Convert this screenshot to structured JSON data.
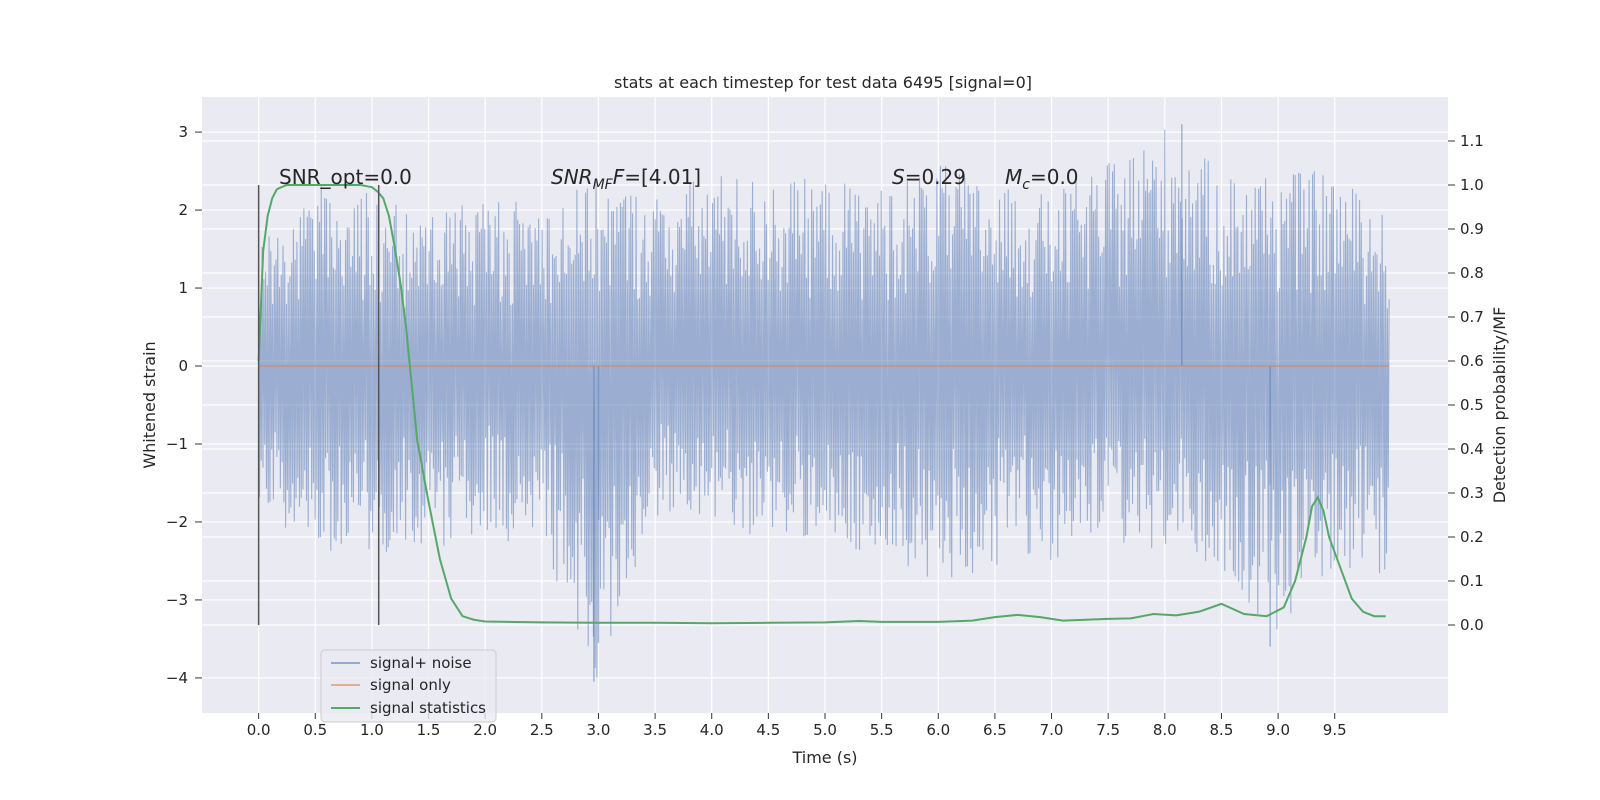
{
  "chart_data": {
    "type": "line",
    "title": "stats at each timestep for test data 6495 [signal=0]",
    "xlabel": "Time (s)",
    "ylabel": "Whitened strain",
    "ylabel_right": "Detection probability/MF",
    "xlim": [
      -0.5,
      10.5
    ],
    "ylim": [
      -4.45,
      3.45
    ],
    "ylim_right": [
      -0.2,
      1.2
    ],
    "x_ticks": [
      0.0,
      0.5,
      1.0,
      1.5,
      2.0,
      2.5,
      3.0,
      3.5,
      4.0,
      4.5,
      5.0,
      5.5,
      6.0,
      6.5,
      7.0,
      7.5,
      8.0,
      8.5,
      9.0,
      9.5
    ],
    "x_tick_labels": [
      "0.0",
      "0.5",
      "1.0",
      "1.5",
      "2.0",
      "2.5",
      "3.0",
      "3.5",
      "4.0",
      "4.5",
      "5.0",
      "5.5",
      "6.0",
      "6.5",
      "7.0",
      "7.5",
      "8.0",
      "8.5",
      "9.0",
      "9.5"
    ],
    "y_ticks": [
      3,
      2,
      1,
      0,
      -1,
      -2,
      -3,
      -4
    ],
    "y_tick_labels": [
      "3",
      "2",
      "1",
      "0",
      "−1",
      "−2",
      "−3",
      "−4"
    ],
    "y_ticks_right": [
      1.1,
      1.0,
      0.9,
      0.8,
      0.7,
      0.6,
      0.5,
      0.4,
      0.3,
      0.2,
      0.1,
      0.0
    ],
    "y_tick_labels_right": [
      "1.1",
      "1.0",
      "0.9",
      "0.8",
      "0.7",
      "0.6",
      "0.5",
      "0.4",
      "0.3",
      "0.2",
      "0.1",
      "0.0"
    ],
    "grid": true,
    "legend": {
      "placement": "lower-left",
      "entries": [
        "signal+ noise",
        "signal only",
        "signal statistics"
      ]
    },
    "annotations": {
      "snr_opt": "SNR_opt=0.0",
      "snr_mf_var": "SNR",
      "snr_mf_sub": "MF",
      "snr_mf_rest": "=[4.01]",
      "s_var": "S",
      "s_rest": "=0.29",
      "mc_var": "M",
      "mc_sub": "c",
      "mc_rest": "=0.0"
    },
    "markers_x": [
      0.0,
      1.06
    ],
    "markers_yrange_right": [
      0.0,
      1.0
    ],
    "series": [
      {
        "name": "signal+ noise",
        "color": "#4c72b0",
        "x_range": [
          0.0,
          9.98
        ],
        "envelope": {
          "x": [
            0.0,
            0.5,
            1.0,
            1.5,
            2.0,
            2.5,
            3.0,
            3.5,
            4.0,
            4.5,
            5.0,
            5.5,
            6.0,
            6.5,
            7.0,
            7.5,
            8.0,
            8.5,
            9.0,
            9.5,
            9.98
          ],
          "upper": [
            1.5,
            2.4,
            2.3,
            2.0,
            2.2,
            2.1,
            2.4,
            2.2,
            2.5,
            2.4,
            2.4,
            2.3,
            2.6,
            2.3,
            2.2,
            2.6,
            3.1,
            2.5,
            2.5,
            2.5,
            1.9
          ],
          "lower": [
            -1.8,
            -2.4,
            -2.4,
            -2.4,
            -2.1,
            -2.5,
            -4.05,
            -2.0,
            -1.9,
            -2.4,
            -2.1,
            -2.6,
            -2.8,
            -2.6,
            -2.5,
            -2.3,
            -2.4,
            -2.6,
            -3.6,
            -2.6,
            -2.95
          ]
        }
      },
      {
        "name": "signal only",
        "color": "#dd8452",
        "x": [
          0.0,
          9.98
        ],
        "y": [
          0.0,
          0.0
        ]
      },
      {
        "name": "signal statistics",
        "color": "#55a868",
        "axis": "right",
        "x": [
          0.0,
          0.04,
          0.08,
          0.12,
          0.16,
          0.2,
          0.25,
          0.3,
          0.4,
          0.5,
          0.6,
          0.7,
          0.8,
          0.9,
          1.0,
          1.05,
          1.1,
          1.15,
          1.2,
          1.25,
          1.3,
          1.35,
          1.4,
          1.5,
          1.6,
          1.7,
          1.8,
          1.9,
          2.0,
          2.5,
          3.0,
          3.5,
          4.0,
          4.5,
          5.0,
          5.3,
          5.5,
          6.0,
          6.3,
          6.5,
          6.7,
          6.9,
          7.1,
          7.3,
          7.5,
          7.7,
          7.9,
          8.1,
          8.3,
          8.5,
          8.7,
          8.9,
          9.05,
          9.15,
          9.25,
          9.3,
          9.35,
          9.4,
          9.45,
          9.55,
          9.65,
          9.75,
          9.85,
          9.95
        ],
        "y": [
          0.6,
          0.85,
          0.93,
          0.97,
          0.99,
          0.995,
          1.0,
          1.0,
          1.0,
          1.0,
          1.0,
          1.0,
          1.0,
          1.0,
          0.995,
          0.985,
          0.97,
          0.93,
          0.86,
          0.78,
          0.68,
          0.55,
          0.42,
          0.28,
          0.15,
          0.06,
          0.02,
          0.012,
          0.008,
          0.006,
          0.005,
          0.005,
          0.004,
          0.005,
          0.006,
          0.009,
          0.007,
          0.007,
          0.01,
          0.018,
          0.023,
          0.018,
          0.01,
          0.012,
          0.014,
          0.015,
          0.025,
          0.022,
          0.03,
          0.048,
          0.025,
          0.02,
          0.04,
          0.1,
          0.2,
          0.27,
          0.29,
          0.26,
          0.2,
          0.13,
          0.06,
          0.03,
          0.02,
          0.02
        ]
      }
    ]
  }
}
